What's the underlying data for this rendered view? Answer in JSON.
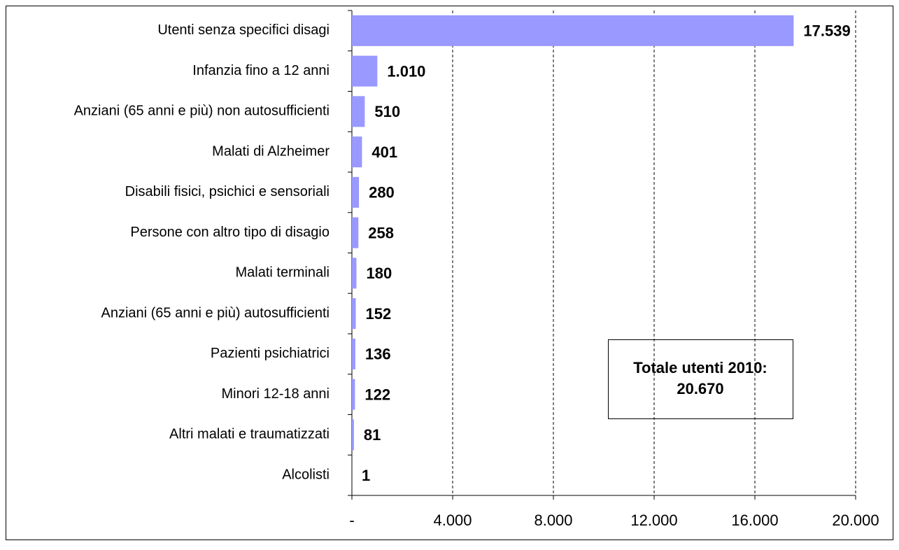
{
  "chart_data": {
    "type": "bar",
    "orientation": "horizontal",
    "categories": [
      "Utenti senza specifici disagi",
      "Infanzia fino a 12 anni",
      "Anziani (65 anni e più) non autosufficienti",
      "Malati di Alzheimer",
      "Disabili fisici, psichici e sensoriali",
      "Persone con altro tipo di disagio",
      "Malati terminali",
      "Anziani (65 anni e più) autosufficienti",
      "Pazienti psichiatrici",
      "Minori 12-18 anni",
      "Altri malati e traumatizzati",
      "Alcolisti"
    ],
    "values": [
      17539,
      1010,
      510,
      401,
      280,
      258,
      180,
      152,
      136,
      122,
      81,
      1
    ],
    "value_labels": [
      "17.539",
      "1.010",
      "510",
      "401",
      "280",
      "258",
      "180",
      "152",
      "136",
      "122",
      "81",
      "1"
    ],
    "color": "#9999ff",
    "xlim": [
      0,
      20000
    ],
    "xticks": [
      {
        "value": 0,
        "label": "-"
      },
      {
        "value": 4000,
        "label": "4.000"
      },
      {
        "value": 8000,
        "label": "8.000"
      },
      {
        "value": 12000,
        "label": "12.000"
      },
      {
        "value": 16000,
        "label": "16.000"
      },
      {
        "value": 20000,
        "label": "20.000"
      }
    ],
    "grid": true,
    "annotation": [
      "Totale utenti 2010:",
      "20.670"
    ]
  }
}
